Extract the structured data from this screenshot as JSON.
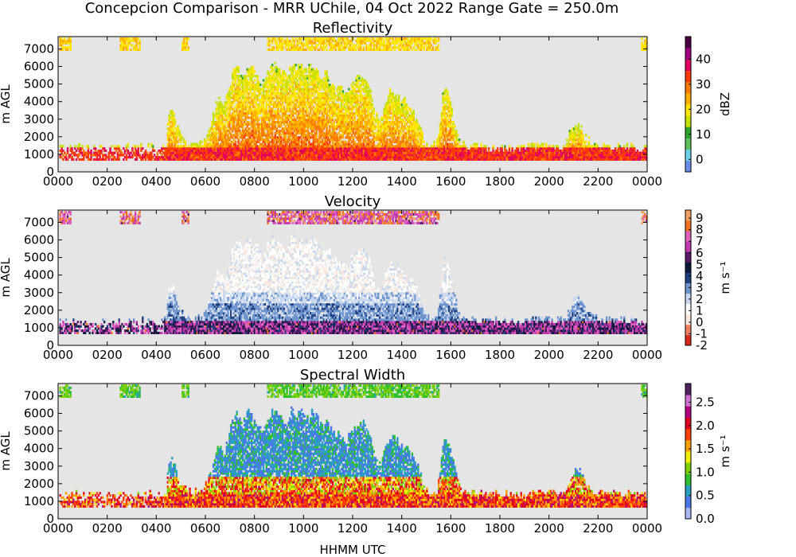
{
  "suptitle": "Concepcion Comparison - MRR UChile, 04 Oct 2022 Range Gate = 250.0m",
  "xlabel": "HHMM UTC",
  "chart_data": [
    {
      "type": "heatmap",
      "title": "Reflectivity",
      "ylabel": "m AGL",
      "x_ticks": [
        "0000",
        "0200",
        "0400",
        "0600",
        "0800",
        "1000",
        "1200",
        "1400",
        "1600",
        "1800",
        "2000",
        "2200",
        "0000"
      ],
      "y_ticks": [
        "0",
        "1000",
        "2000",
        "3000",
        "4000",
        "5000",
        "6000",
        "7000"
      ],
      "xlim_hours": [
        0,
        24
      ],
      "ylim_m": [
        0,
        7700
      ],
      "colorbar": {
        "label": "dBZ",
        "range": [
          -5,
          49
        ],
        "ticks": [
          "0",
          "10",
          "20",
          "30",
          "40"
        ],
        "tick_values": [
          0,
          10,
          20,
          30,
          40
        ],
        "colors": [
          "#6a8fe8",
          "#6fd3ea",
          "#5fbf5a",
          "#2da52d",
          "#c8e000",
          "#ffe600",
          "#ffb000",
          "#ff7a00",
          "#ff3a00",
          "#e00060",
          "#a00080",
          "#4a0040"
        ]
      },
      "background": "#e5e5e5"
    },
    {
      "type": "heatmap",
      "title": "Velocity",
      "ylabel": "m s⁻¹",
      "ylabel_left": "m AGL",
      "x_ticks": [
        "0000",
        "0200",
        "0400",
        "0600",
        "0800",
        "1000",
        "1200",
        "1400",
        "1600",
        "1800",
        "2000",
        "2200",
        "0000"
      ],
      "y_ticks": [
        "0",
        "1000",
        "2000",
        "3000",
        "4000",
        "5000",
        "6000",
        "7000"
      ],
      "xlim_hours": [
        0,
        24
      ],
      "ylim_m": [
        0,
        7700
      ],
      "colorbar": {
        "label": "m s⁻¹",
        "range": [
          -2,
          9.7
        ],
        "ticks": [
          "-2",
          "-1",
          "0",
          "1",
          "2",
          "3",
          "4",
          "5",
          "6",
          "7",
          "8",
          "9"
        ],
        "tick_values": [
          -2,
          -1,
          0,
          1,
          2,
          3,
          4,
          5,
          6,
          7,
          8,
          9
        ],
        "colors": [
          "#d9281a",
          "#f08060",
          "#fbe8e0",
          "#ffffff",
          "#c8d8ef",
          "#6f95cf",
          "#1f3f7f",
          "#0a1a3a",
          "#5a1a6a",
          "#c03ab0",
          "#e060c0",
          "#f07020",
          "#f0a060"
        ]
      },
      "background": "#e5e5e5"
    },
    {
      "type": "heatmap",
      "title": "Spectral Width",
      "ylabel_left": "m AGL",
      "x_ticks": [
        "0000",
        "0200",
        "0400",
        "0600",
        "0800",
        "1000",
        "1200",
        "1400",
        "1600",
        "1800",
        "2000",
        "2200",
        "0000"
      ],
      "y_ticks": [
        "0",
        "1000",
        "2000",
        "3000",
        "4000",
        "5000",
        "6000",
        "7000"
      ],
      "xlim_hours": [
        0,
        24
      ],
      "ylim_m": [
        0,
        7700
      ],
      "colorbar": {
        "label": "m s⁻¹",
        "range": [
          0,
          2.9
        ],
        "ticks": [
          "0.0",
          "0.5",
          "1.0",
          "1.5",
          "2.0",
          "2.5"
        ],
        "tick_values": [
          0,
          0.5,
          1.0,
          1.5,
          2.0,
          2.5
        ],
        "colors": [
          "#a8b8f0",
          "#4a78e8",
          "#2aa0c0",
          "#30c030",
          "#80d000",
          "#f0f000",
          "#ffa000",
          "#ff4000",
          "#e00020",
          "#b00080",
          "#d070d0",
          "#502060"
        ]
      },
      "background": "#e5e5e5"
    }
  ]
}
